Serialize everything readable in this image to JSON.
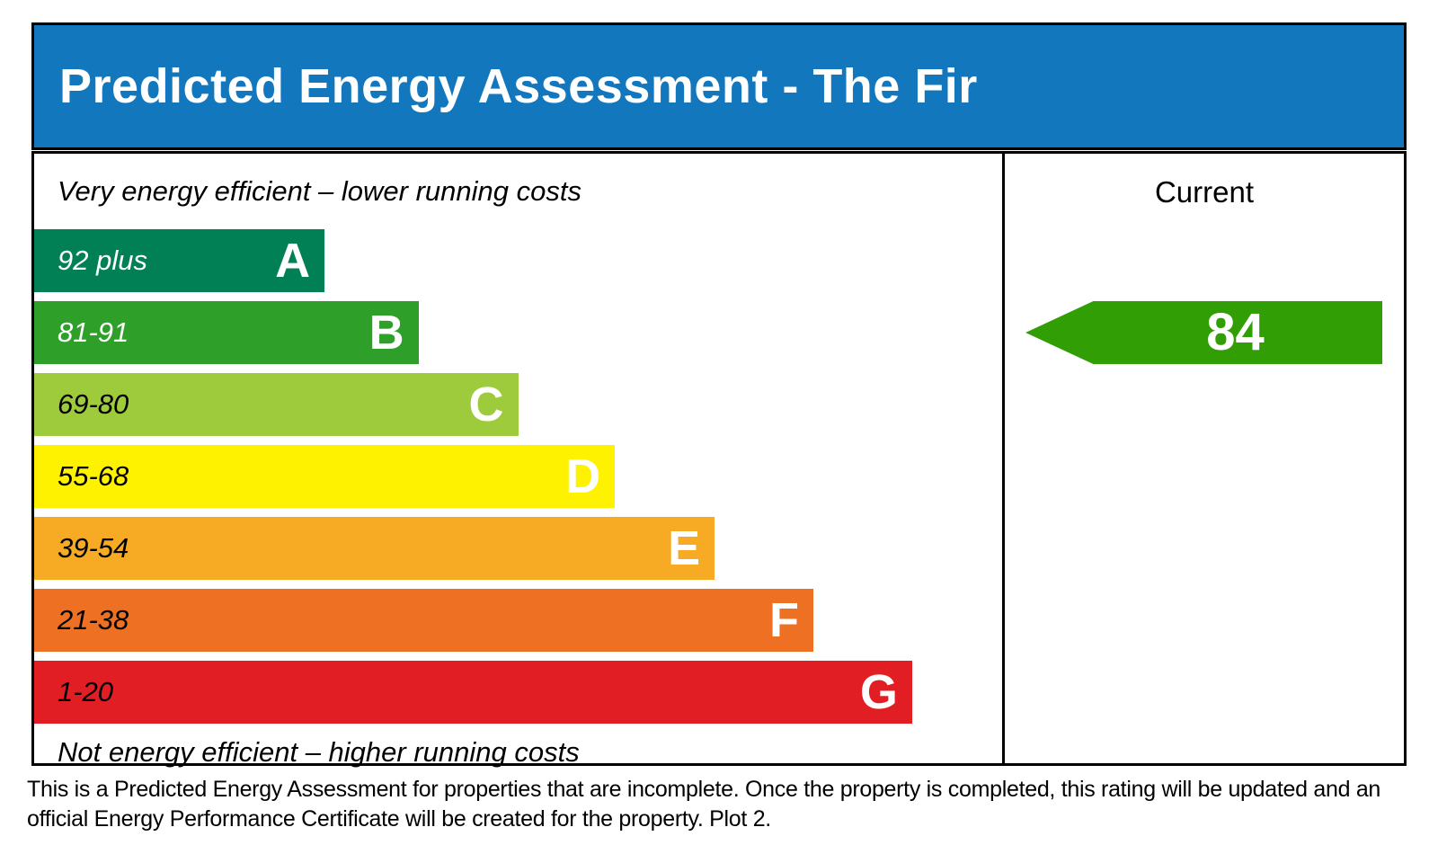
{
  "header": {
    "title": "Predicted Energy Assessment - The Fir",
    "bg_color": "#1277bd"
  },
  "chart_data": {
    "type": "bar",
    "title": "Predicted Energy Assessment - The Fir",
    "top_caption": "Very energy efficient – lower running costs",
    "bottom_caption": "Not energy efficient – higher running costs",
    "column_header": "Current",
    "bands": [
      {
        "letter": "A",
        "range": "92 plus",
        "color": "#008054",
        "width_pct": 30,
        "range_text_color": "#ffffff"
      },
      {
        "letter": "B",
        "range": "81-91",
        "color": "#2e9f29",
        "width_pct": 39.7,
        "range_text_color": "#ffffff"
      },
      {
        "letter": "C",
        "range": "69-80",
        "color": "#9ecb3b",
        "width_pct": 50,
        "range_text_color": "#000000"
      },
      {
        "letter": "D",
        "range": "55-68",
        "color": "#fff200",
        "width_pct": 60,
        "range_text_color": "#000000"
      },
      {
        "letter": "E",
        "range": "39-54",
        "color": "#f7ab25",
        "width_pct": 70.3,
        "range_text_color": "#000000"
      },
      {
        "letter": "F",
        "range": "21-38",
        "color": "#ee7123",
        "width_pct": 80.5,
        "range_text_color": "#000000"
      },
      {
        "letter": "G",
        "range": "1-20",
        "color": "#e21e25",
        "width_pct": 90.7,
        "range_text_color": "#000000"
      }
    ],
    "current": {
      "value": 84,
      "band": "B",
      "arrow_color": "#319e06"
    }
  },
  "footer": {
    "text": "This is a Predicted Energy Assessment for properties that are incomplete. Once the property is completed, this rating will be updated and an official Energy Performance Certificate will be created for the property. Plot 2."
  }
}
